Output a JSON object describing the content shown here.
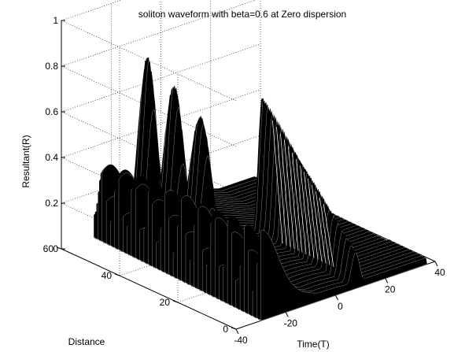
{
  "chart_data": {
    "type": "surface3d",
    "title": "soliton waveform with beta=0.6 at Zero dispersion",
    "xlabel": "Time(T)",
    "ylabel": "Distance",
    "zlabel": "Resultant(R)",
    "xlim": [
      -40,
      40
    ],
    "ylim": [
      0,
      60
    ],
    "zlim": [
      0,
      1
    ],
    "x_ticks": [
      "-40",
      "-20",
      "0",
      "20",
      "40"
    ],
    "y_ticks": [
      "0",
      "20",
      "40",
      "60"
    ],
    "z_ticks": [
      "0",
      "0.2",
      "0.4",
      "0.6",
      "0.8",
      "1"
    ],
    "grid": true,
    "surface_color": "#000000",
    "highlight_color": "#ffffff",
    "ridges": [
      {
        "t": -10,
        "distance_start": 60,
        "distance_end": 52,
        "peak": 0.76
      },
      {
        "t": -7,
        "distance_start": 54,
        "distance_end": 45,
        "peak": 0.66
      },
      {
        "t": -4,
        "distance_start": 48,
        "distance_end": 38,
        "peak": 0.55
      },
      {
        "t": 8,
        "distance_start": 30,
        "distance_end": 0,
        "peak": 0.63
      }
    ],
    "ripple_peaks_along_distance": [
      0.25,
      0.26,
      0.27,
      0.28,
      0.29,
      0.3,
      0.31,
      0.32
    ]
  }
}
